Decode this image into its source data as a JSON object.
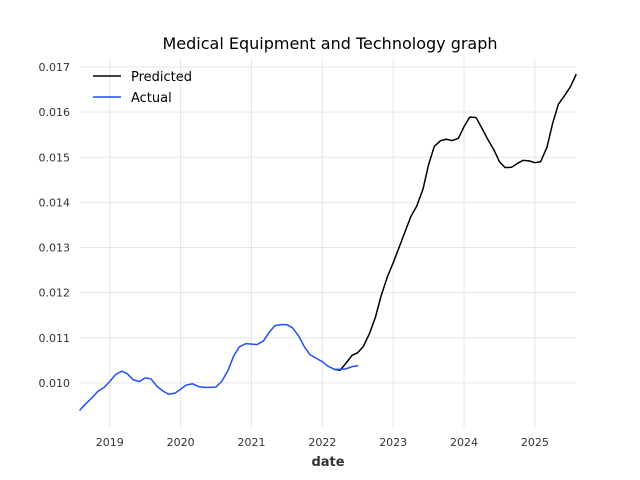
{
  "chart_data": {
    "type": "line",
    "title": "Medical Equipment and Technology graph",
    "xlabel": "date",
    "ylabel": "",
    "xlim": [
      2018.58,
      2025.58
    ],
    "ylim": [
      0.009,
      0.0172
    ],
    "x_ticks": [
      2019,
      2020,
      2021,
      2022,
      2023,
      2024,
      2025
    ],
    "x_tick_labels": [
      "2019",
      "2020",
      "2021",
      "2022",
      "2023",
      "2024",
      "2025"
    ],
    "y_ticks": [
      0.01,
      0.011,
      0.012,
      0.013,
      0.014,
      0.015,
      0.016,
      0.017
    ],
    "y_tick_labels": [
      "0.010",
      "0.011",
      "0.012",
      "0.013",
      "0.014",
      "0.015",
      "0.016",
      "0.017"
    ],
    "grid": true,
    "legend_position": "top-left",
    "series": [
      {
        "name": "Predicted",
        "color": "#000000",
        "x": [
          2022.17,
          2022.25,
          2022.33,
          2022.42,
          2022.5,
          2022.58,
          2022.67,
          2022.75,
          2022.83,
          2022.92,
          2023.0,
          2023.08,
          2023.17,
          2023.25,
          2023.33,
          2023.42,
          2023.5,
          2023.58,
          2023.67,
          2023.75,
          2023.83,
          2023.92,
          2024.0,
          2024.08,
          2024.17,
          2024.25,
          2024.33,
          2024.42,
          2024.5,
          2024.58,
          2024.67,
          2024.75,
          2024.83,
          2024.92,
          2025.0,
          2025.08,
          2025.17,
          2025.25,
          2025.33,
          2025.42,
          2025.5,
          2025.58
        ],
        "y": [
          0.0103,
          0.01028,
          0.01043,
          0.01061,
          0.01067,
          0.01081,
          0.01111,
          0.01146,
          0.01193,
          0.01236,
          0.01266,
          0.01299,
          0.01336,
          0.01369,
          0.01391,
          0.01429,
          0.01484,
          0.01524,
          0.01537,
          0.0154,
          0.01537,
          0.01542,
          0.01568,
          0.01589,
          0.01588,
          0.01565,
          0.01541,
          0.01517,
          0.0149,
          0.01477,
          0.01478,
          0.01486,
          0.01493,
          0.01492,
          0.01488,
          0.0149,
          0.01522,
          0.01575,
          0.01617,
          0.01637,
          0.01656,
          0.01683
        ]
      },
      {
        "name": "Actual",
        "color": "#1f4fff",
        "x": [
          2018.58,
          2018.67,
          2018.75,
          2018.83,
          2018.92,
          2019.0,
          2019.08,
          2019.17,
          2019.25,
          2019.33,
          2019.42,
          2019.5,
          2019.58,
          2019.67,
          2019.75,
          2019.83,
          2019.92,
          2020.0,
          2020.08,
          2020.17,
          2020.25,
          2020.33,
          2020.42,
          2020.5,
          2020.58,
          2020.67,
          2020.75,
          2020.83,
          2020.92,
          2021.0,
          2021.08,
          2021.17,
          2021.25,
          2021.33,
          2021.42,
          2021.5,
          2021.58,
          2021.67,
          2021.75,
          2021.83,
          2021.92,
          2022.0,
          2022.08,
          2022.17,
          2022.25,
          2022.33,
          2022.42,
          2022.5
        ],
        "y": [
          0.0094,
          0.00955,
          0.00967,
          0.00981,
          0.0099,
          0.01003,
          0.01018,
          0.01026,
          0.0102,
          0.01007,
          0.01003,
          0.01011,
          0.01009,
          0.00992,
          0.00982,
          0.00975,
          0.00977,
          0.00986,
          0.00995,
          0.00998,
          0.00992,
          0.0099,
          0.0099,
          0.00991,
          0.01003,
          0.01028,
          0.0106,
          0.0108,
          0.01087,
          0.01086,
          0.01085,
          0.01093,
          0.01112,
          0.01127,
          0.01129,
          0.01129,
          0.01122,
          0.01103,
          0.01079,
          0.01062,
          0.01054,
          0.01047,
          0.01037,
          0.0103,
          0.0103,
          0.01031,
          0.01036,
          0.01038
        ]
      }
    ]
  }
}
